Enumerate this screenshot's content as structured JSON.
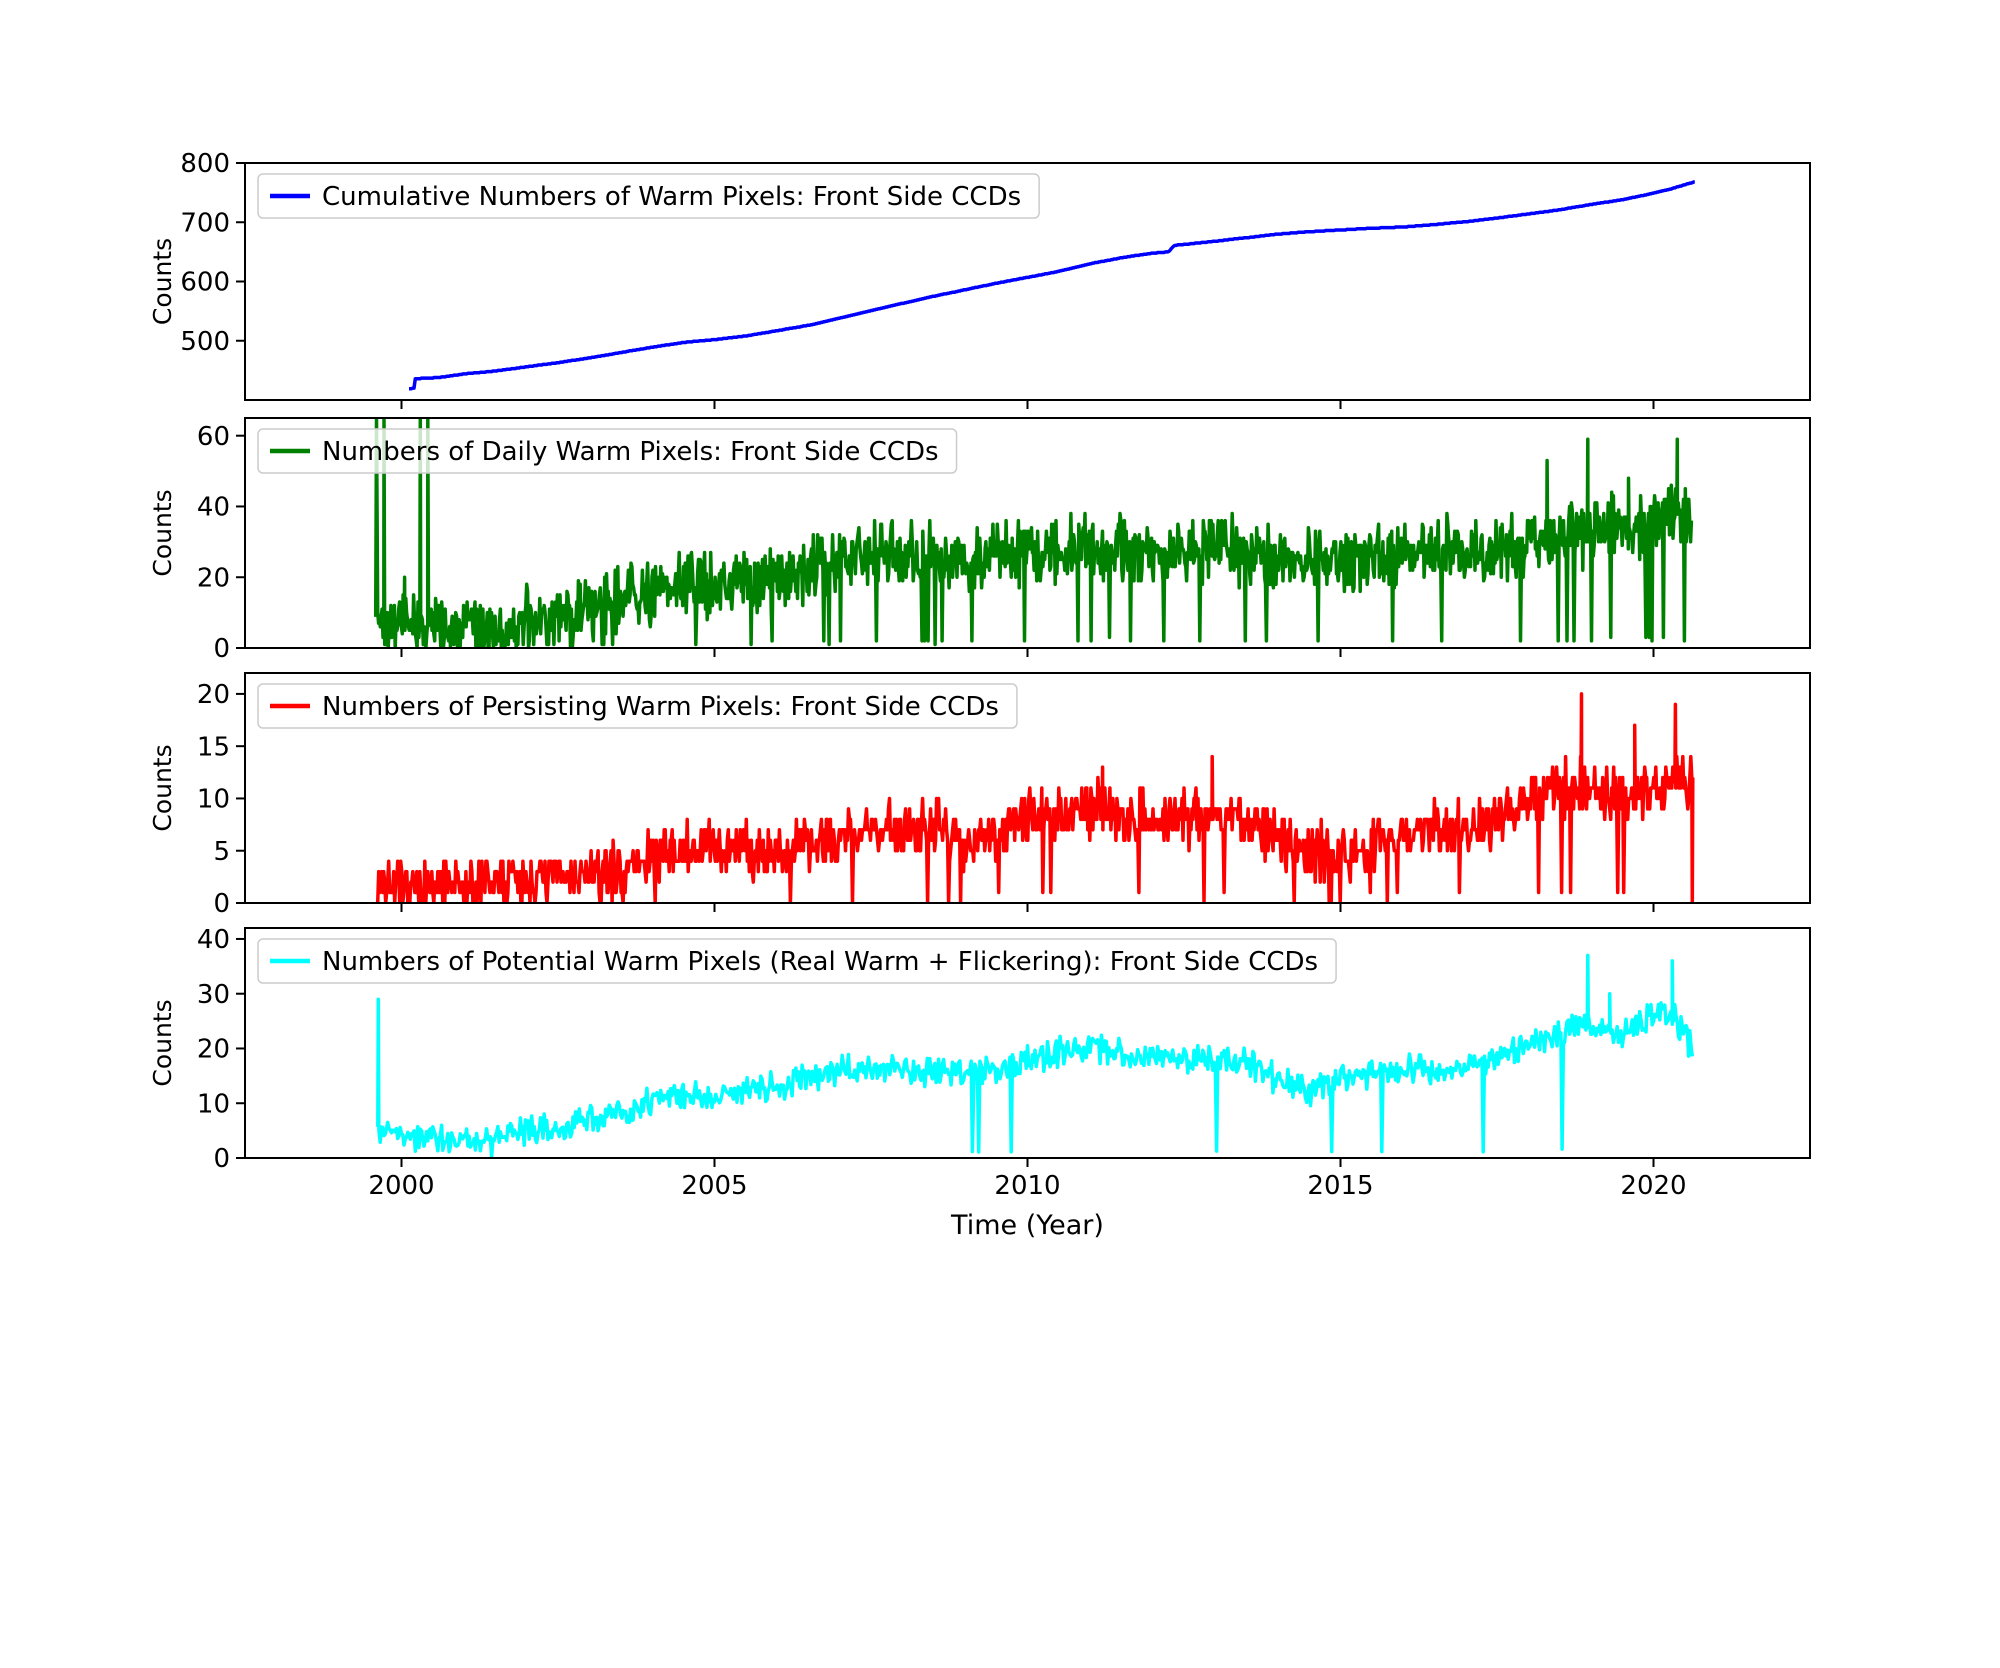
{
  "figure": {
    "xlabel": "Time (Year)",
    "shared_ylabel": "Counts",
    "xticks": [
      2000,
      2005,
      2010,
      2015,
      2020
    ],
    "xlim": [
      1997.5,
      2022.5
    ],
    "background": "#ffffff"
  },
  "chart_data": [
    {
      "type": "line",
      "legend": "Cumulative Numbers of Warm Pixels: Front Side CCDs",
      "color": "#0000ff",
      "ylabel": "Counts",
      "ylim": [
        400,
        800
      ],
      "yticks": [
        500,
        600,
        700,
        800
      ],
      "integer": true,
      "monotonic": true,
      "noise_amp": 0,
      "dip_prob": 0,
      "anchors": [
        [
          2000.12,
          419
        ],
        [
          2000.2,
          420
        ],
        [
          2000.22,
          436
        ],
        [
          2000.6,
          438
        ],
        [
          2001,
          444
        ],
        [
          2001.5,
          449
        ],
        [
          2002,
          456
        ],
        [
          2002.5,
          463
        ],
        [
          2003,
          471
        ],
        [
          2003.5,
          480
        ],
        [
          2004,
          489
        ],
        [
          2004.5,
          497
        ],
        [
          2005,
          502
        ],
        [
          2005.5,
          508
        ],
        [
          2006,
          517
        ],
        [
          2006.5,
          526
        ],
        [
          2007,
          538
        ],
        [
          2007.5,
          551
        ],
        [
          2008,
          563
        ],
        [
          2008.5,
          575
        ],
        [
          2009,
          586
        ],
        [
          2009.5,
          597
        ],
        [
          2010,
          607
        ],
        [
          2010.5,
          617
        ],
        [
          2011,
          630
        ],
        [
          2011.5,
          640
        ],
        [
          2012,
          648
        ],
        [
          2012.25,
          650
        ],
        [
          2012.35,
          661
        ],
        [
          2013,
          668
        ],
        [
          2013.5,
          674
        ],
        [
          2014,
          680
        ],
        [
          2014.5,
          684
        ],
        [
          2015,
          687
        ],
        [
          2015.5,
          690
        ],
        [
          2016,
          692
        ],
        [
          2016.5,
          696
        ],
        [
          2017,
          701
        ],
        [
          2017.5,
          707
        ],
        [
          2018,
          714
        ],
        [
          2018.5,
          721
        ],
        [
          2019,
          730
        ],
        [
          2019.5,
          738
        ],
        [
          2020,
          749
        ],
        [
          2020.3,
          757
        ],
        [
          2020.65,
          768
        ]
      ],
      "spikes": []
    },
    {
      "type": "line",
      "legend": "Numbers of Daily Warm Pixels: Front Side CCDs",
      "color": "#008000",
      "ylabel": "Counts",
      "ylim": [
        0,
        65
      ],
      "yticks": [
        0,
        20,
        40,
        60
      ],
      "integer": true,
      "monotonic": false,
      "noise_amp": 11,
      "dip_prob": 0.03,
      "anchors": [
        [
          1999.62,
          9
        ],
        [
          2000,
          7
        ],
        [
          2000.5,
          6
        ],
        [
          2001,
          5
        ],
        [
          2001.5,
          4.5
        ],
        [
          2002,
          7
        ],
        [
          2002.5,
          9
        ],
        [
          2003,
          11
        ],
        [
          2003.5,
          13
        ],
        [
          2004,
          16
        ],
        [
          2004.5,
          18
        ],
        [
          2005,
          18
        ],
        [
          2005.5,
          19
        ],
        [
          2006,
          20
        ],
        [
          2006.5,
          22
        ],
        [
          2007,
          25
        ],
        [
          2007.5,
          26
        ],
        [
          2008,
          27
        ],
        [
          2008.5,
          26
        ],
        [
          2009,
          25
        ],
        [
          2009.5,
          26
        ],
        [
          2010,
          27
        ],
        [
          2010.5,
          28
        ],
        [
          2011,
          29
        ],
        [
          2011.5,
          28
        ],
        [
          2012,
          27
        ],
        [
          2012.5,
          27
        ],
        [
          2013,
          28
        ],
        [
          2013.5,
          27
        ],
        [
          2014,
          24
        ],
        [
          2014.5,
          24
        ],
        [
          2015,
          25
        ],
        [
          2015.5,
          26
        ],
        [
          2016,
          26
        ],
        [
          2016.5,
          27
        ],
        [
          2017,
          27
        ],
        [
          2017.5,
          28
        ],
        [
          2018,
          30
        ],
        [
          2018.5,
          31
        ],
        [
          2019,
          32
        ],
        [
          2019.5,
          34
        ],
        [
          2020,
          35
        ],
        [
          2020.4,
          38
        ],
        [
          2020.6,
          38
        ]
      ],
      "spikes": [
        [
          1999.66,
          65,
          0.12
        ],
        [
          2000.05,
          20,
          0
        ],
        [
          2000.36,
          65,
          0.12
        ],
        [
          2018.3,
          53,
          0
        ],
        [
          2018.95,
          59,
          0
        ],
        [
          2019.6,
          48,
          0
        ],
        [
          2020.38,
          59,
          0
        ]
      ]
    },
    {
      "type": "line",
      "legend": "Numbers of Persisting Warm Pixels: Front Side CCDs",
      "color": "#ff0000",
      "ylabel": "Counts",
      "ylim": [
        0,
        22
      ],
      "yticks": [
        0,
        5,
        10,
        15,
        20
      ],
      "integer": true,
      "monotonic": false,
      "noise_amp": 3.2,
      "dip_prob": 0.02,
      "anchors": [
        [
          1999.62,
          2
        ],
        [
          2000,
          1.5
        ],
        [
          2000.5,
          1.2
        ],
        [
          2001,
          1.5
        ],
        [
          2001.5,
          2
        ],
        [
          2002,
          2.3
        ],
        [
          2002.5,
          2.4
        ],
        [
          2003,
          2.5
        ],
        [
          2003.5,
          3
        ],
        [
          2004,
          4.5
        ],
        [
          2004.5,
          5
        ],
        [
          2005,
          5.5
        ],
        [
          2005.5,
          5.2
        ],
        [
          2006,
          5
        ],
        [
          2006.5,
          5.5
        ],
        [
          2007,
          6.5
        ],
        [
          2007.5,
          7
        ],
        [
          2008,
          7
        ],
        [
          2008.5,
          7.5
        ],
        [
          2009,
          6
        ],
        [
          2009.5,
          7
        ],
        [
          2010,
          8
        ],
        [
          2010.5,
          8.5
        ],
        [
          2011,
          9
        ],
        [
          2011.5,
          8.5
        ],
        [
          2012,
          8
        ],
        [
          2012.5,
          8.3
        ],
        [
          2013,
          8.5
        ],
        [
          2013.5,
          8
        ],
        [
          2014,
          6
        ],
        [
          2014.5,
          4.5
        ],
        [
          2015,
          5
        ],
        [
          2015.5,
          5.5
        ],
        [
          2016,
          6.5
        ],
        [
          2016.5,
          7
        ],
        [
          2017,
          7.5
        ],
        [
          2017.5,
          8
        ],
        [
          2018,
          10
        ],
        [
          2018.5,
          11
        ],
        [
          2019,
          11
        ],
        [
          2019.5,
          10
        ],
        [
          2020,
          11
        ],
        [
          2020.6,
          12
        ]
      ],
      "spikes": [
        [
          2011.2,
          13,
          0
        ],
        [
          2012.95,
          14,
          0
        ],
        [
          2018.85,
          20,
          0
        ],
        [
          2019.7,
          17,
          0
        ],
        [
          2020.35,
          19,
          0
        ],
        [
          2020.62,
          0,
          0
        ]
      ]
    },
    {
      "type": "line",
      "legend": "Numbers of Potential Warm Pixels (Real Warm + Flickering): Front Side CCDs",
      "color": "#00ffff",
      "ylabel": "Counts",
      "ylim": [
        0,
        42
      ],
      "yticks": [
        0,
        10,
        20,
        30,
        40
      ],
      "integer": false,
      "monotonic": false,
      "noise_amp": 3.2,
      "dip_prob": 0.008,
      "anchors": [
        [
          1999.62,
          6
        ],
        [
          1999.75,
          5
        ],
        [
          2000,
          4.5
        ],
        [
          2000.5,
          3.5
        ],
        [
          2001,
          3
        ],
        [
          2001.5,
          3.5
        ],
        [
          2002,
          5
        ],
        [
          2002.5,
          5.5
        ],
        [
          2003,
          7
        ],
        [
          2003.5,
          8.5
        ],
        [
          2004,
          10
        ],
        [
          2004.5,
          11.5
        ],
        [
          2005,
          11
        ],
        [
          2005.5,
          12
        ],
        [
          2006,
          13
        ],
        [
          2006.5,
          14.5
        ],
        [
          2007,
          16
        ],
        [
          2007.5,
          16.5
        ],
        [
          2008,
          16
        ],
        [
          2008.5,
          16
        ],
        [
          2009,
          15.5
        ],
        [
          2009.5,
          16
        ],
        [
          2010,
          17.5
        ],
        [
          2010.5,
          19.5
        ],
        [
          2011,
          20
        ],
        [
          2011.5,
          19
        ],
        [
          2012,
          18.5
        ],
        [
          2012.5,
          18
        ],
        [
          2013,
          18.5
        ],
        [
          2013.5,
          18
        ],
        [
          2014,
          14
        ],
        [
          2014.5,
          12.5
        ],
        [
          2015,
          14.5
        ],
        [
          2015.5,
          15
        ],
        [
          2016,
          16
        ],
        [
          2016.5,
          16
        ],
        [
          2017,
          17
        ],
        [
          2017.5,
          18
        ],
        [
          2018,
          21
        ],
        [
          2018.5,
          23
        ],
        [
          2019,
          24
        ],
        [
          2019.5,
          23
        ],
        [
          2020,
          26
        ],
        [
          2020.3,
          26
        ],
        [
          2020.62,
          20
        ]
      ],
      "spikes": [
        [
          1999.63,
          29,
          0
        ],
        [
          2018.95,
          37,
          0
        ],
        [
          2019.3,
          30,
          0
        ],
        [
          2020.3,
          36,
          0
        ]
      ]
    }
  ]
}
